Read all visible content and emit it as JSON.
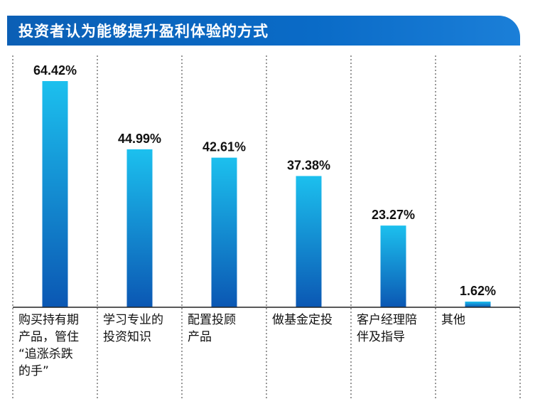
{
  "chart_data": {
    "type": "bar",
    "title": "投资者认为能够提升盈利体验的方式",
    "categories": [
      "购买持有期\n产品，管住\n“追涨杀跌\n的手”",
      "学习专业的\n投资知识",
      "配置投顾\n产品",
      "做基金定投",
      "客户经理陪\n伴及指导",
      "其他"
    ],
    "values": [
      64.42,
      44.99,
      42.61,
      37.38,
      23.27,
      1.62
    ],
    "value_labels": [
      "64.42%",
      "44.99%",
      "42.61%",
      "37.38%",
      "23.27%",
      "1.62%"
    ],
    "xlabel": "",
    "ylabel": "",
    "ylim": [
      0,
      64.42
    ],
    "grid": "vertical dotted separators",
    "colors": {
      "banner": "#0a64bd",
      "bar_top": "#1cc0ee",
      "bar_bottom": "#0b57b3",
      "separator": "#555555",
      "axis": "#222222"
    }
  }
}
